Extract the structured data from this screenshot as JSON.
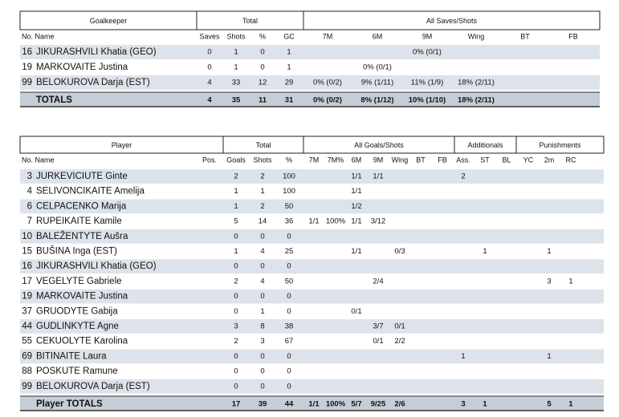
{
  "goalkeeper_table": {
    "groups": [
      "Goalkeeper",
      "Total",
      "All Saves/Shots"
    ],
    "columns": [
      "No. Name",
      "Saves",
      "Shots",
      "%",
      "GC",
      "7M",
      "6M",
      "9M",
      "Wing",
      "BT",
      "FB"
    ],
    "rows": [
      {
        "no": 16,
        "name": "JIKURASHVILI Khatia (GEO)",
        "cells": [
          0,
          1,
          0,
          1,
          null,
          null,
          "0% (0/1)",
          null,
          null,
          null
        ]
      },
      {
        "no": 19,
        "name": "MARKOVAITE Justina",
        "cells": [
          0,
          1,
          0,
          1,
          null,
          "0% (0/1)",
          null,
          null,
          null,
          null
        ]
      },
      {
        "no": 99,
        "name": "BELOKUROVA Darja (EST)",
        "cells": [
          4,
          33,
          12,
          29,
          "0% (0/2)",
          "9% (1/11)",
          "11% (1/9)",
          "18% (2/11)",
          null,
          null
        ]
      }
    ],
    "totals": {
      "label": "TOTALS",
      "cells": [
        4,
        35,
        11,
        31,
        "0% (0/2)",
        "8% (1/12)",
        "10% (1/10)",
        "18% (2/11)",
        null,
        null
      ]
    }
  },
  "player_table": {
    "groups": [
      "Player",
      "Total",
      "All Goals/Shots",
      "Additionals",
      "Punishments"
    ],
    "columns": [
      "No. Name",
      "Pos.",
      "Goals",
      "Shots",
      "%",
      "7M",
      "7M%",
      "6M",
      "9M",
      "Wing",
      "BT",
      "FB",
      "Ass.",
      "ST",
      "BL",
      "YC",
      "2m",
      "RC"
    ],
    "rows": [
      {
        "no": 3,
        "name": "JURKEVICIUTE Ginte",
        "cells": [
          null,
          2,
          2,
          100,
          null,
          null,
          "1/1",
          "1/1",
          null,
          null,
          null,
          2,
          null,
          null,
          null,
          null,
          null
        ]
      },
      {
        "no": 4,
        "name": "SELIVONCIKAITE Amelija",
        "cells": [
          null,
          1,
          1,
          100,
          null,
          null,
          "1/1",
          null,
          null,
          null,
          null,
          null,
          null,
          null,
          null,
          null,
          null
        ]
      },
      {
        "no": 6,
        "name": "CELPACENKO Marija",
        "cells": [
          null,
          1,
          2,
          50,
          null,
          null,
          "1/2",
          null,
          null,
          null,
          null,
          null,
          null,
          null,
          null,
          null,
          null
        ]
      },
      {
        "no": 7,
        "name": "RUPEIKAITE Kamile",
        "cells": [
          null,
          5,
          14,
          36,
          "1/1",
          "100%",
          "1/1",
          "3/12",
          null,
          null,
          null,
          null,
          null,
          null,
          null,
          null,
          null
        ]
      },
      {
        "no": 10,
        "name": "BALEŽENTYTE Aušra",
        "cells": [
          null,
          0,
          0,
          0,
          null,
          null,
          null,
          null,
          null,
          null,
          null,
          null,
          null,
          null,
          null,
          null,
          null
        ]
      },
      {
        "no": 15,
        "name": "BUŠINA Inga (EST)",
        "cells": [
          null,
          1,
          4,
          25,
          null,
          null,
          "1/1",
          null,
          "0/3",
          null,
          null,
          null,
          1,
          null,
          null,
          1,
          null
        ]
      },
      {
        "no": 16,
        "name": "JIKURASHVILI Khatia (GEO)",
        "cells": [
          null,
          0,
          0,
          0,
          null,
          null,
          null,
          null,
          null,
          null,
          null,
          null,
          null,
          null,
          null,
          null,
          null
        ]
      },
      {
        "no": 17,
        "name": "VEGELYTE Gabriele",
        "cells": [
          null,
          2,
          4,
          50,
          null,
          null,
          null,
          "2/4",
          null,
          null,
          null,
          null,
          null,
          null,
          null,
          3,
          1
        ]
      },
      {
        "no": 19,
        "name": "MARKOVAITE Justina",
        "cells": [
          null,
          0,
          0,
          0,
          null,
          null,
          null,
          null,
          null,
          null,
          null,
          null,
          null,
          null,
          null,
          null,
          null
        ]
      },
      {
        "no": 37,
        "name": "GRUODYTE Gabija",
        "cells": [
          null,
          0,
          1,
          0,
          null,
          null,
          "0/1",
          null,
          null,
          null,
          null,
          null,
          null,
          null,
          null,
          null,
          null
        ]
      },
      {
        "no": 44,
        "name": "GUDLINKYTE Agne",
        "cells": [
          null,
          3,
          8,
          38,
          null,
          null,
          null,
          "3/7",
          "0/1",
          null,
          null,
          null,
          null,
          null,
          null,
          null,
          null
        ]
      },
      {
        "no": 55,
        "name": "CEKUOLYTE Karolina",
        "cells": [
          null,
          2,
          3,
          67,
          null,
          null,
          null,
          "0/1",
          "2/2",
          null,
          null,
          null,
          null,
          null,
          null,
          null,
          null
        ]
      },
      {
        "no": 69,
        "name": "BITINAITE Laura",
        "cells": [
          null,
          0,
          0,
          0,
          null,
          null,
          null,
          null,
          null,
          null,
          null,
          1,
          null,
          null,
          null,
          1,
          null
        ]
      },
      {
        "no": 88,
        "name": "POSKUTE Ramune",
        "cells": [
          null,
          0,
          0,
          0,
          null,
          null,
          null,
          null,
          null,
          null,
          null,
          null,
          null,
          null,
          null,
          null,
          null
        ]
      },
      {
        "no": 99,
        "name": "BELOKUROVA Darja (EST)",
        "cells": [
          null,
          0,
          0,
          0,
          null,
          null,
          null,
          null,
          null,
          null,
          null,
          null,
          null,
          null,
          null,
          null,
          null
        ]
      }
    ],
    "totals": {
      "label": "Player TOTALS",
      "cells": [
        null,
        17,
        39,
        44,
        "1/1",
        "100%",
        "5/7",
        "9/25",
        "2/6",
        null,
        null,
        3,
        1,
        null,
        null,
        5,
        1
      ]
    }
  }
}
